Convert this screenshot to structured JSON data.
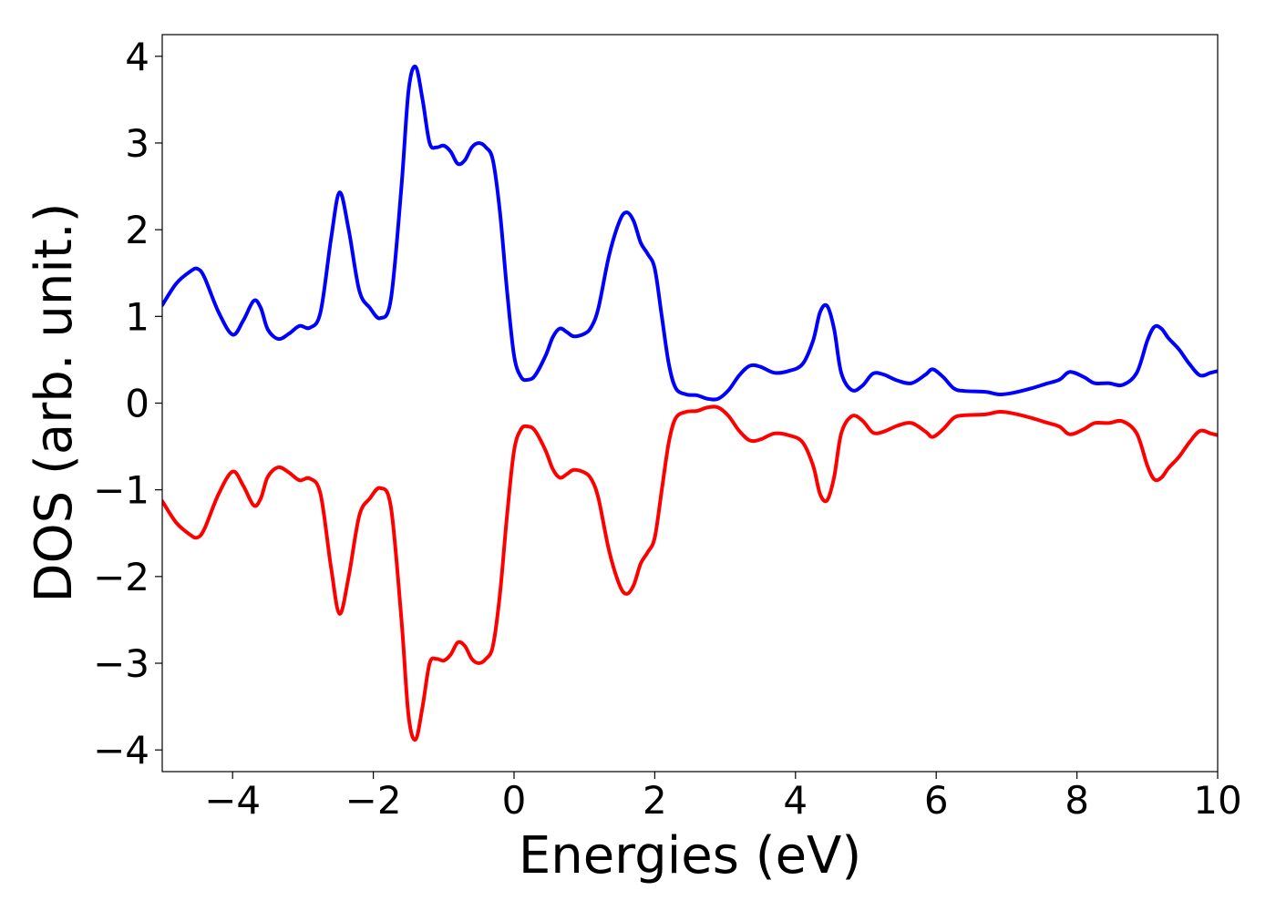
{
  "chart_data": {
    "type": "line",
    "title": "",
    "xlabel": "Energies (eV)",
    "ylabel": "DOS (arb. unit.)",
    "xlim": [
      -5,
      10
    ],
    "ylim": [
      -4.25,
      4.25
    ],
    "grid": false,
    "legend": "none",
    "x_ticks": [
      -4,
      -2,
      0,
      2,
      4,
      6,
      8,
      10
    ],
    "x_tick_labels": [
      "−4",
      "−2",
      "0",
      "2",
      "4",
      "6",
      "8",
      "10"
    ],
    "y_ticks": [
      -4,
      -3,
      -2,
      -1,
      0,
      1,
      2,
      3,
      4
    ],
    "y_tick_labels": [
      "−4",
      "−3",
      "−2",
      "−1",
      "0",
      "1",
      "2",
      "3",
      "4"
    ],
    "series": [
      {
        "color": "#0000ff",
        "points": [
          [
            -5.0,
            1.13
          ],
          [
            -4.8,
            1.38
          ],
          [
            -4.6,
            1.52
          ],
          [
            -4.5,
            1.55
          ],
          [
            -4.4,
            1.45
          ],
          [
            -4.2,
            1.05
          ],
          [
            -4.0,
            0.79
          ],
          [
            -3.85,
            0.95
          ],
          [
            -3.7,
            1.18
          ],
          [
            -3.6,
            1.1
          ],
          [
            -3.5,
            0.85
          ],
          [
            -3.35,
            0.74
          ],
          [
            -3.2,
            0.8
          ],
          [
            -3.05,
            0.89
          ],
          [
            -2.9,
            0.87
          ],
          [
            -2.75,
            1.05
          ],
          [
            -2.6,
            1.9
          ],
          [
            -2.48,
            2.43
          ],
          [
            -2.35,
            2.0
          ],
          [
            -2.2,
            1.3
          ],
          [
            -2.05,
            1.1
          ],
          [
            -1.9,
            0.98
          ],
          [
            -1.75,
            1.2
          ],
          [
            -1.6,
            2.5
          ],
          [
            -1.5,
            3.6
          ],
          [
            -1.4,
            3.88
          ],
          [
            -1.3,
            3.5
          ],
          [
            -1.2,
            3.0
          ],
          [
            -1.1,
            2.95
          ],
          [
            -1.0,
            2.97
          ],
          [
            -0.9,
            2.9
          ],
          [
            -0.8,
            2.76
          ],
          [
            -0.7,
            2.8
          ],
          [
            -0.6,
            2.95
          ],
          [
            -0.5,
            3.0
          ],
          [
            -0.4,
            2.95
          ],
          [
            -0.3,
            2.8
          ],
          [
            -0.2,
            2.2
          ],
          [
            -0.1,
            1.3
          ],
          [
            0.0,
            0.55
          ],
          [
            0.1,
            0.3
          ],
          [
            0.2,
            0.27
          ],
          [
            0.3,
            0.32
          ],
          [
            0.45,
            0.55
          ],
          [
            0.55,
            0.76
          ],
          [
            0.65,
            0.86
          ],
          [
            0.75,
            0.82
          ],
          [
            0.85,
            0.77
          ],
          [
            1.0,
            0.8
          ],
          [
            1.1,
            0.88
          ],
          [
            1.2,
            1.1
          ],
          [
            1.35,
            1.7
          ],
          [
            1.5,
            2.1
          ],
          [
            1.6,
            2.2
          ],
          [
            1.7,
            2.1
          ],
          [
            1.8,
            1.85
          ],
          [
            1.9,
            1.72
          ],
          [
            2.0,
            1.55
          ],
          [
            2.1,
            1.0
          ],
          [
            2.2,
            0.45
          ],
          [
            2.3,
            0.17
          ],
          [
            2.45,
            0.1
          ],
          [
            2.6,
            0.09
          ],
          [
            2.75,
            0.05
          ],
          [
            2.9,
            0.05
          ],
          [
            3.05,
            0.15
          ],
          [
            3.2,
            0.32
          ],
          [
            3.35,
            0.43
          ],
          [
            3.5,
            0.42
          ],
          [
            3.7,
            0.35
          ],
          [
            3.9,
            0.37
          ],
          [
            4.1,
            0.45
          ],
          [
            4.25,
            0.72
          ],
          [
            4.35,
            1.05
          ],
          [
            4.45,
            1.12
          ],
          [
            4.55,
            0.85
          ],
          [
            4.65,
            0.35
          ],
          [
            4.8,
            0.15
          ],
          [
            4.95,
            0.2
          ],
          [
            5.1,
            0.34
          ],
          [
            5.25,
            0.33
          ],
          [
            5.45,
            0.26
          ],
          [
            5.65,
            0.23
          ],
          [
            5.85,
            0.33
          ],
          [
            5.95,
            0.39
          ],
          [
            6.1,
            0.3
          ],
          [
            6.25,
            0.17
          ],
          [
            6.4,
            0.14
          ],
          [
            6.7,
            0.13
          ],
          [
            6.9,
            0.1
          ],
          [
            7.1,
            0.12
          ],
          [
            7.35,
            0.17
          ],
          [
            7.55,
            0.22
          ],
          [
            7.75,
            0.27
          ],
          [
            7.9,
            0.36
          ],
          [
            8.1,
            0.3
          ],
          [
            8.25,
            0.23
          ],
          [
            8.45,
            0.23
          ],
          [
            8.65,
            0.21
          ],
          [
            8.85,
            0.35
          ],
          [
            9.0,
            0.72
          ],
          [
            9.1,
            0.88
          ],
          [
            9.2,
            0.86
          ],
          [
            9.3,
            0.75
          ],
          [
            9.45,
            0.62
          ],
          [
            9.6,
            0.45
          ],
          [
            9.75,
            0.32
          ],
          [
            9.9,
            0.35
          ],
          [
            10.0,
            0.37
          ]
        ]
      },
      {
        "color": "#ff0000",
        "points": [
          [
            -5.0,
            -1.13
          ],
          [
            -4.8,
            -1.38
          ],
          [
            -4.6,
            -1.52
          ],
          [
            -4.5,
            -1.55
          ],
          [
            -4.4,
            -1.45
          ],
          [
            -4.2,
            -1.05
          ],
          [
            -4.0,
            -0.79
          ],
          [
            -3.85,
            -0.95
          ],
          [
            -3.7,
            -1.18
          ],
          [
            -3.6,
            -1.1
          ],
          [
            -3.5,
            -0.85
          ],
          [
            -3.35,
            -0.74
          ],
          [
            -3.2,
            -0.8
          ],
          [
            -3.05,
            -0.89
          ],
          [
            -2.9,
            -0.87
          ],
          [
            -2.75,
            -1.05
          ],
          [
            -2.6,
            -1.9
          ],
          [
            -2.48,
            -2.43
          ],
          [
            -2.35,
            -2.0
          ],
          [
            -2.2,
            -1.3
          ],
          [
            -2.05,
            -1.1
          ],
          [
            -1.9,
            -0.98
          ],
          [
            -1.75,
            -1.2
          ],
          [
            -1.6,
            -2.5
          ],
          [
            -1.5,
            -3.6
          ],
          [
            -1.4,
            -3.88
          ],
          [
            -1.3,
            -3.5
          ],
          [
            -1.2,
            -3.0
          ],
          [
            -1.1,
            -2.95
          ],
          [
            -1.0,
            -2.97
          ],
          [
            -0.9,
            -2.9
          ],
          [
            -0.8,
            -2.76
          ],
          [
            -0.7,
            -2.8
          ],
          [
            -0.6,
            -2.95
          ],
          [
            -0.5,
            -3.0
          ],
          [
            -0.4,
            -2.95
          ],
          [
            -0.3,
            -2.8
          ],
          [
            -0.2,
            -2.2
          ],
          [
            -0.1,
            -1.3
          ],
          [
            0.0,
            -0.55
          ],
          [
            0.1,
            -0.3
          ],
          [
            0.2,
            -0.27
          ],
          [
            0.3,
            -0.32
          ],
          [
            0.45,
            -0.55
          ],
          [
            0.55,
            -0.76
          ],
          [
            0.65,
            -0.86
          ],
          [
            0.75,
            -0.82
          ],
          [
            0.85,
            -0.77
          ],
          [
            1.0,
            -0.8
          ],
          [
            1.1,
            -0.88
          ],
          [
            1.2,
            -1.1
          ],
          [
            1.35,
            -1.7
          ],
          [
            1.5,
            -2.1
          ],
          [
            1.6,
            -2.2
          ],
          [
            1.7,
            -2.1
          ],
          [
            1.8,
            -1.85
          ],
          [
            1.9,
            -1.72
          ],
          [
            2.0,
            -1.55
          ],
          [
            2.1,
            -1.0
          ],
          [
            2.2,
            -0.45
          ],
          [
            2.3,
            -0.17
          ],
          [
            2.45,
            -0.1
          ],
          [
            2.6,
            -0.09
          ],
          [
            2.75,
            -0.05
          ],
          [
            2.9,
            -0.05
          ],
          [
            3.05,
            -0.15
          ],
          [
            3.2,
            -0.32
          ],
          [
            3.35,
            -0.43
          ],
          [
            3.5,
            -0.42
          ],
          [
            3.7,
            -0.35
          ],
          [
            3.9,
            -0.37
          ],
          [
            4.1,
            -0.45
          ],
          [
            4.25,
            -0.72
          ],
          [
            4.35,
            -1.05
          ],
          [
            4.45,
            -1.12
          ],
          [
            4.55,
            -0.85
          ],
          [
            4.65,
            -0.35
          ],
          [
            4.8,
            -0.15
          ],
          [
            4.95,
            -0.2
          ],
          [
            5.1,
            -0.34
          ],
          [
            5.25,
            -0.33
          ],
          [
            5.45,
            -0.26
          ],
          [
            5.65,
            -0.23
          ],
          [
            5.85,
            -0.33
          ],
          [
            5.95,
            -0.39
          ],
          [
            6.1,
            -0.3
          ],
          [
            6.25,
            -0.17
          ],
          [
            6.4,
            -0.14
          ],
          [
            6.7,
            -0.13
          ],
          [
            6.9,
            -0.1
          ],
          [
            7.1,
            -0.12
          ],
          [
            7.35,
            -0.17
          ],
          [
            7.55,
            -0.22
          ],
          [
            7.75,
            -0.27
          ],
          [
            7.9,
            -0.36
          ],
          [
            8.1,
            -0.3
          ],
          [
            8.25,
            -0.23
          ],
          [
            8.45,
            -0.23
          ],
          [
            8.65,
            -0.21
          ],
          [
            8.85,
            -0.35
          ],
          [
            9.0,
            -0.72
          ],
          [
            9.1,
            -0.88
          ],
          [
            9.2,
            -0.86
          ],
          [
            9.3,
            -0.75
          ],
          [
            9.45,
            -0.62
          ],
          [
            9.6,
            -0.45
          ],
          [
            9.75,
            -0.32
          ],
          [
            9.9,
            -0.35
          ],
          [
            10.0,
            -0.37
          ]
        ]
      }
    ]
  }
}
